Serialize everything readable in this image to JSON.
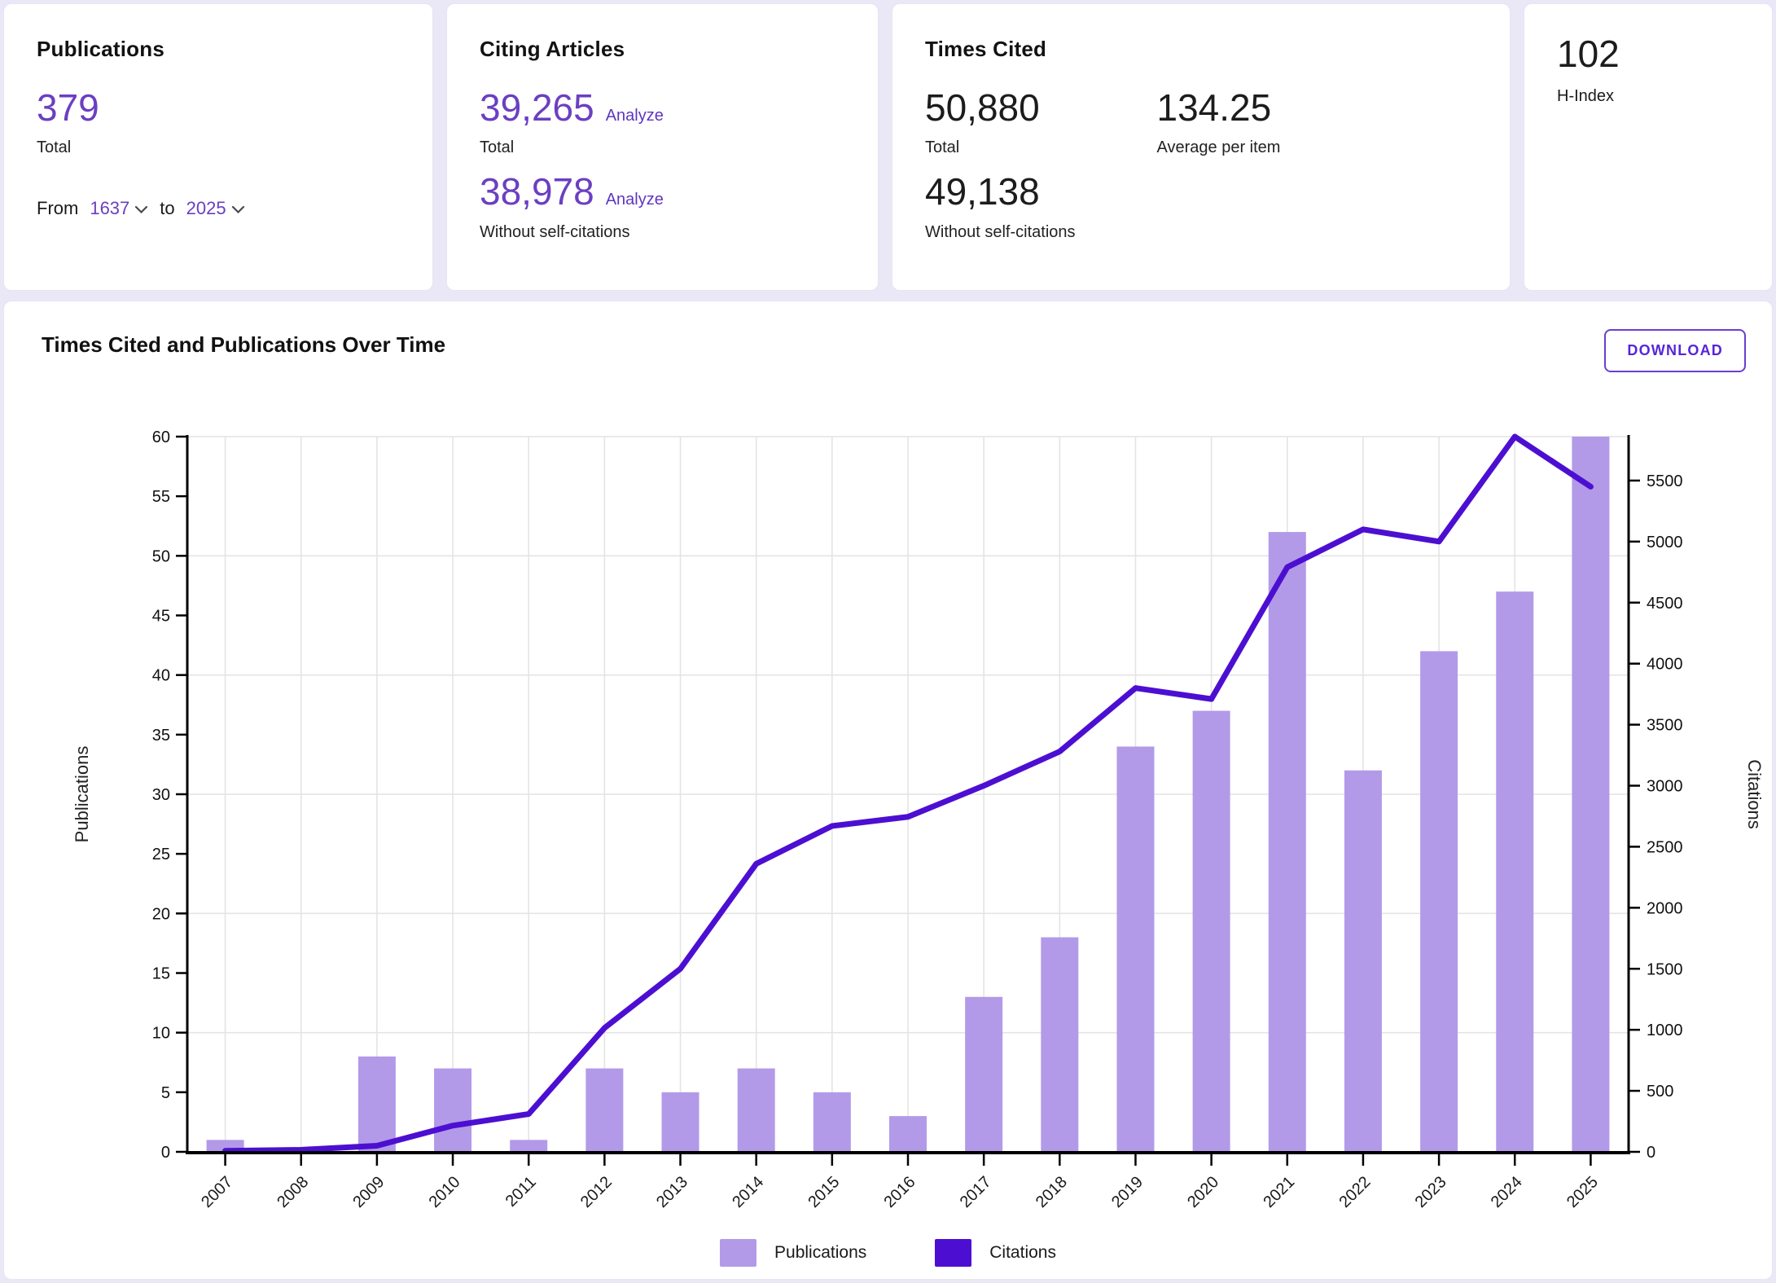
{
  "cards": {
    "publications": {
      "title": "Publications",
      "total_value": "379",
      "total_label": "Total",
      "from_label": "From",
      "from_year": "1637",
      "to_label": "to",
      "to_year": "2025"
    },
    "citing_articles": {
      "title": "Citing Articles",
      "total_value": "39,265",
      "total_analyze_label": "Analyze",
      "total_label": "Total",
      "without_value": "38,978",
      "without_analyze_label": "Analyze",
      "without_label": "Without self-citations"
    },
    "times_cited": {
      "title": "Times Cited",
      "total_value": "50,880",
      "total_label": "Total",
      "average_value": "134.25",
      "average_label": "Average per item",
      "without_value": "49,138",
      "without_label": "Without self-citations"
    },
    "h_index": {
      "value": "102",
      "label": "H-Index"
    }
  },
  "chart_section": {
    "title": "Times Cited and Publications Over Time",
    "download_label": "DOWNLOAD"
  },
  "chart_data": {
    "type": "bar+line",
    "title": "Times Cited and Publications Over Time",
    "categories": [
      2007,
      2008,
      2009,
      2010,
      2011,
      2012,
      2013,
      2014,
      2015,
      2016,
      2017,
      2018,
      2019,
      2020,
      2021,
      2022,
      2023,
      2024,
      2025
    ],
    "series": [
      {
        "name": "Publications",
        "type": "bar",
        "axis": "left",
        "values": [
          1,
          0,
          8,
          7,
          1,
          7,
          5,
          7,
          5,
          3,
          13,
          18,
          34,
          37,
          52,
          32,
          42,
          47,
          60
        ]
      },
      {
        "name": "Citations",
        "type": "line",
        "axis": "right",
        "values": [
          8,
          17,
          50,
          215,
          310,
          1015,
          1500,
          2360,
          2670,
          2745,
          3000,
          3280,
          3800,
          3710,
          4790,
          5100,
          5000,
          5860,
          5450
        ]
      }
    ],
    "left_axis": {
      "label": "Publications",
      "min": 0,
      "max": 60,
      "tick_step": 5,
      "grid_step": 10
    },
    "right_axis": {
      "label": "Citations",
      "min": 0,
      "max": 5860,
      "tick_step": 500,
      "last_tick": 5500
    },
    "legend": [
      "Publications",
      "Citations"
    ],
    "grid": true,
    "legend_position": "bottom",
    "colors": {
      "bar": "#b29ae8",
      "line": "#4c0fd2",
      "grid": "#e4e4e4",
      "axis": "#000000"
    }
  }
}
